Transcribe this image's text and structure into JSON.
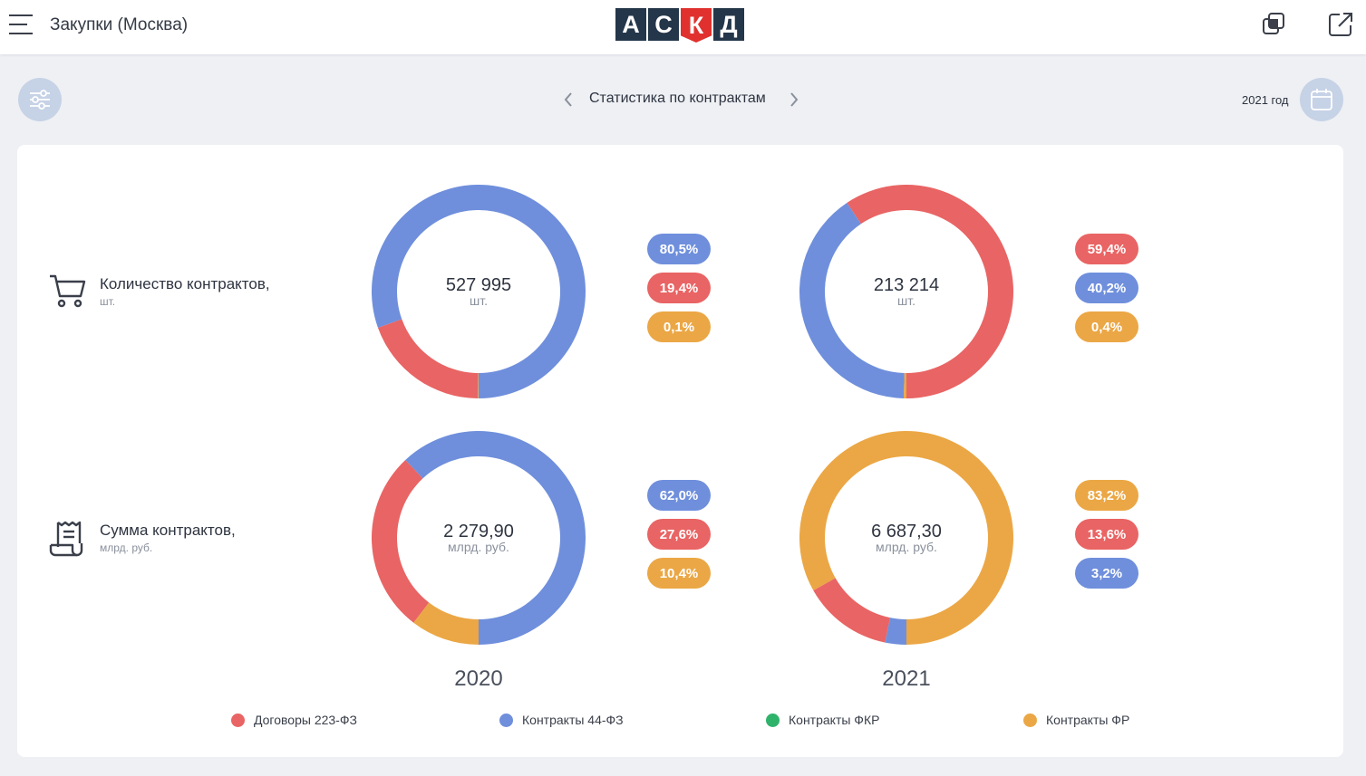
{
  "app": {
    "title": "Закупки (Москва)"
  },
  "logo": {
    "letters": [
      "А",
      "С",
      "К",
      "Д"
    ]
  },
  "nav": {
    "title": "Статистика по контрактам",
    "year_label": "2021 год"
  },
  "colors": {
    "red": "#e96464",
    "blue": "#6f8fdc",
    "green": "#2fb36b",
    "orange": "#eba745",
    "dark": "#243649"
  },
  "rows": [
    {
      "title": "Количество контрактов,",
      "subtitle": "шт.",
      "icon": "cart-icon"
    },
    {
      "title": "Сумма контрактов,",
      "subtitle": "млрд. руб.",
      "icon": "receipt-icon"
    }
  ],
  "years": [
    "2020",
    "2021"
  ],
  "donuts": {
    "count_2020": {
      "value": "527 995",
      "unit": "шт.",
      "segments": [
        {
          "series": "Контракты 44-ФЗ",
          "percent": 80.5,
          "label": "80,5%",
          "color": "#6f8fdc"
        },
        {
          "series": "Договоры 223-ФЗ",
          "percent": 19.4,
          "label": "19,4%",
          "color": "#e96464"
        },
        {
          "series": "Контракты ФР",
          "percent": 0.1,
          "label": "0,1%",
          "color": "#eba745"
        }
      ]
    },
    "count_2021": {
      "value": "213 214",
      "unit": "шт.",
      "segments": [
        {
          "series": "Договоры 223-ФЗ",
          "percent": 59.4,
          "label": "59,4%",
          "color": "#e96464"
        },
        {
          "series": "Контракты 44-ФЗ",
          "percent": 40.2,
          "label": "40,2%",
          "color": "#6f8fdc"
        },
        {
          "series": "Контракты ФР",
          "percent": 0.4,
          "label": "0,4%",
          "color": "#eba745"
        }
      ]
    },
    "sum_2020": {
      "value": "2 279,90",
      "unit": "млрд. руб.",
      "segments": [
        {
          "series": "Контракты 44-ФЗ",
          "percent": 62.0,
          "label": "62,0%",
          "color": "#6f8fdc"
        },
        {
          "series": "Договоры 223-ФЗ",
          "percent": 27.6,
          "label": "27,6%",
          "color": "#e96464"
        },
        {
          "series": "Контракты ФР",
          "percent": 10.4,
          "label": "10,4%",
          "color": "#eba745"
        }
      ]
    },
    "sum_2021": {
      "value": "6 687,30",
      "unit": "млрд. руб.",
      "segments": [
        {
          "series": "Контракты ФР",
          "percent": 83.2,
          "label": "83,2%",
          "color": "#eba745"
        },
        {
          "series": "Договоры 223-ФЗ",
          "percent": 13.6,
          "label": "13,6%",
          "color": "#e96464"
        },
        {
          "series": "Контракты 44-ФЗ",
          "percent": 3.2,
          "label": "3,2%",
          "color": "#6f8fdc"
        }
      ]
    }
  },
  "legend": [
    {
      "label": "Договоры 223-ФЗ",
      "color": "#e96464"
    },
    {
      "label": "Контракты 44-ФЗ",
      "color": "#6f8fdc"
    },
    {
      "label": "Контракты ФКР",
      "color": "#2fb36b"
    },
    {
      "label": "Контракты ФР",
      "color": "#eba745"
    }
  ]
}
